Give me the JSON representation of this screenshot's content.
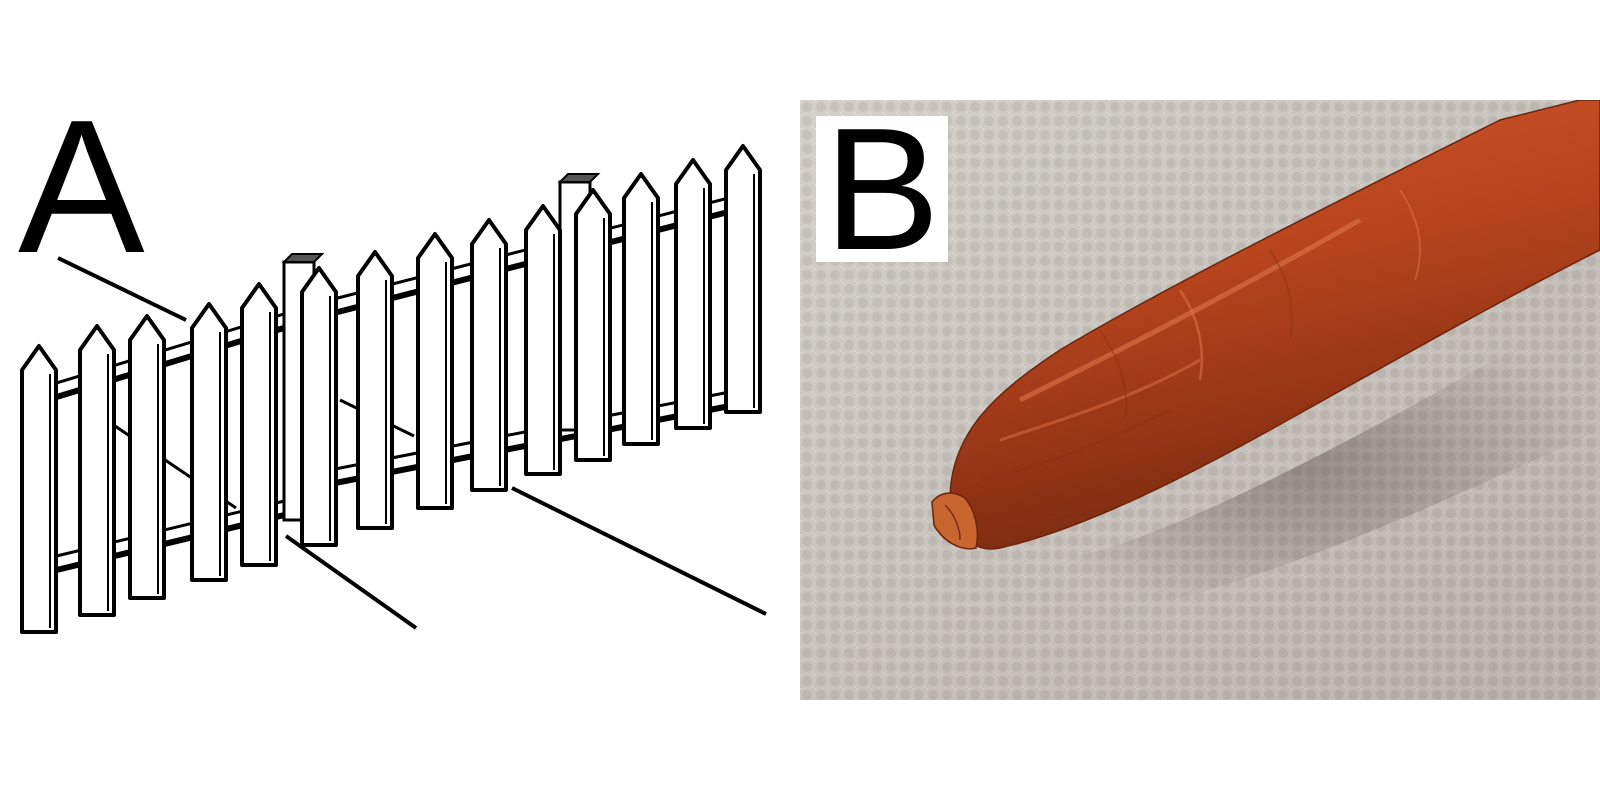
{
  "panel_a": {
    "label": "A",
    "subject": "picket-fence-illustration"
  },
  "panel_b": {
    "label": "B",
    "subject": "dried-sausage-photo"
  },
  "colors": {
    "background": "#ffffff",
    "ink": "#000000",
    "tablecloth": "#c9c4bd",
    "sausage": "#b8441d",
    "sausage_dark": "#7a2a10",
    "sausage_highlight": "#e0744a"
  }
}
